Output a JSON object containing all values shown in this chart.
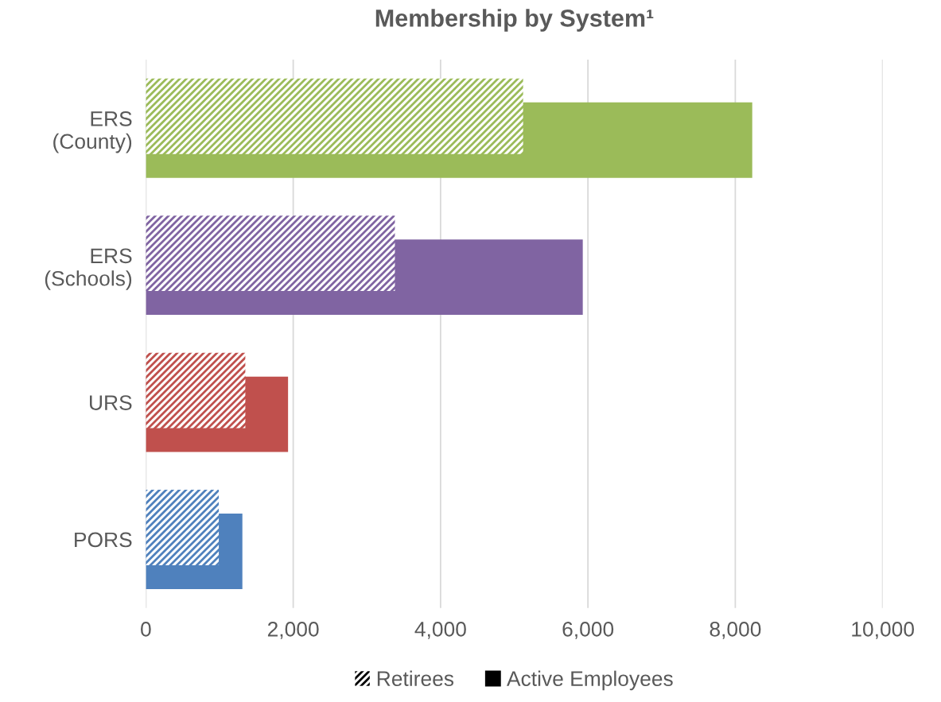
{
  "chart_data": {
    "type": "bar",
    "orientation": "horizontal",
    "title": "Membership by System¹",
    "categories": [
      "ERS\n(County)",
      "ERS\n(Schools)",
      "URS",
      "PORS"
    ],
    "series": [
      {
        "name": "Retirees",
        "color": "#000000",
        "colors": [
          "#9bbb59",
          "#8064a2",
          "#c0504d",
          "#4f81bd"
        ],
        "values": [
          5120,
          3380,
          1350,
          990
        ]
      },
      {
        "name": "Active Employees",
        "color": "#000000",
        "colors": [
          "#9bbb59",
          "#8064a2",
          "#c0504d",
          "#4f81bd"
        ],
        "values": [
          8230,
          5930,
          1930,
          1310
        ]
      }
    ],
    "xlim": [
      0,
      10000
    ],
    "xticks": [
      0,
      {
        "value": 2000,
        "label": "2,000"
      },
      {
        "value": 4000,
        "label": "4,000"
      },
      {
        "value": 6000,
        "label": "6,000"
      },
      {
        "value": 8000,
        "label": "8,000"
      },
      {
        "value": 10000,
        "label": "10,000"
      }
    ],
    "grid": "x",
    "legend": "bottom"
  }
}
